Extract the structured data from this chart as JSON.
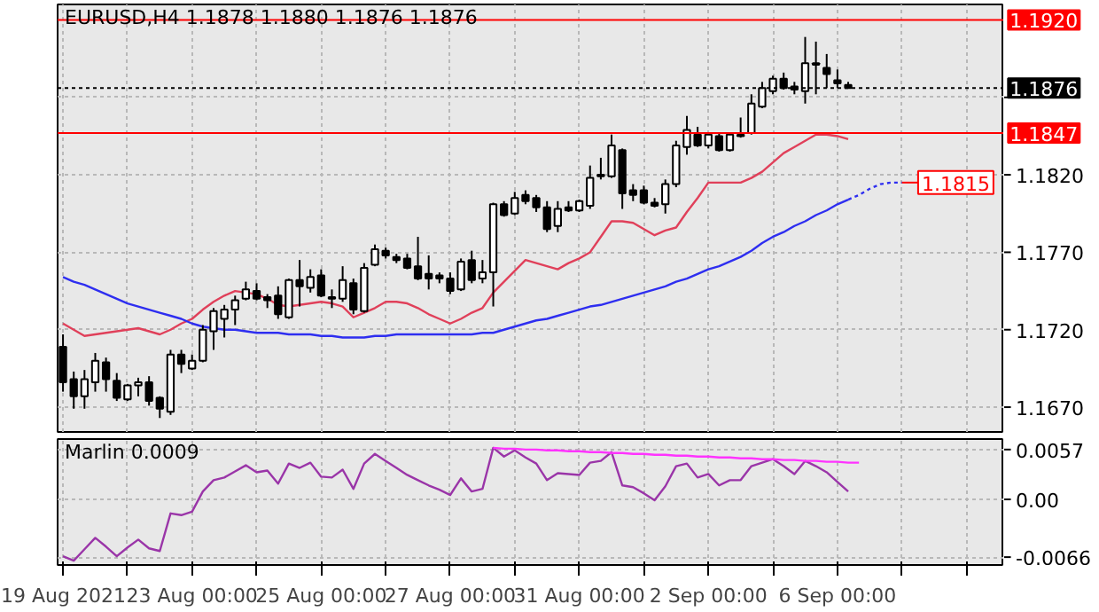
{
  "chart_data": [
    {
      "type": "candlestick",
      "title": "EURUSD,H4  1.1878 1.1880 1.1876 1.1876",
      "categories": [
        null,
        null,
        null,
        null,
        null,
        null,
        null,
        null,
        null,
        null,
        null,
        null,
        null,
        null,
        null,
        null,
        null,
        null,
        null,
        null,
        null,
        null,
        null,
        null,
        null,
        null,
        null,
        null,
        null,
        null,
        null,
        null,
        null,
        null,
        null,
        null,
        null,
        null,
        null,
        null,
        null,
        null,
        null,
        null,
        null,
        null,
        null,
        null,
        null,
        null,
        null,
        null,
        null,
        null,
        null,
        null,
        null,
        null,
        null,
        null,
        null,
        null,
        null,
        null,
        null,
        null,
        null,
        null,
        null,
        null,
        null,
        null,
        null,
        null,
        null,
        null,
        null,
        null,
        null,
        null,
        null,
        null,
        null,
        null,
        null,
        null,
        null,
        null
      ],
      "ohlc": [
        [
          1.1709,
          1.1717,
          1.168,
          1.1686
        ],
        [
          1.1688,
          1.1693,
          1.1669,
          1.1677
        ],
        [
          1.1677,
          1.1694,
          1.1669,
          1.1688
        ],
        [
          1.1686,
          1.1705,
          1.168,
          1.17
        ],
        [
          1.1699,
          1.1702,
          1.168,
          1.1688
        ],
        [
          1.1687,
          1.1692,
          1.1674,
          1.1676
        ],
        [
          1.1675,
          1.1685,
          1.1674,
          1.1684
        ],
        [
          1.1684,
          1.1689,
          1.1677,
          1.1686
        ],
        [
          1.1686,
          1.169,
          1.1671,
          1.1674
        ],
        [
          1.1676,
          1.1677,
          1.1663,
          1.1669
        ],
        [
          1.1667,
          1.1707,
          1.1665,
          1.1704
        ],
        [
          1.1704,
          1.1707,
          1.1692,
          1.1698
        ],
        [
          1.1695,
          1.1704,
          1.1694,
          1.17
        ],
        [
          1.17,
          1.1723,
          1.1699,
          1.172
        ],
        [
          1.1719,
          1.1734,
          1.1707,
          1.1732
        ],
        [
          1.1727,
          1.1736,
          1.1715,
          1.1733
        ],
        [
          1.1733,
          1.1742,
          1.1723,
          1.1739
        ],
        [
          1.174,
          1.1751,
          1.1739,
          1.1746
        ],
        [
          1.1745,
          1.175,
          1.1739,
          1.174
        ],
        [
          1.1741,
          1.1743,
          1.1734,
          1.1739
        ],
        [
          1.1742,
          1.1748,
          1.1727,
          1.173
        ],
        [
          1.1728,
          1.1753,
          1.1727,
          1.1752
        ],
        [
          1.1752,
          1.1765,
          1.1735,
          1.1748
        ],
        [
          1.1747,
          1.1759,
          1.1744,
          1.1754
        ],
        [
          1.1755,
          1.1759,
          1.1741,
          1.1742
        ],
        [
          1.1741,
          1.1746,
          1.1734,
          1.174
        ],
        [
          1.174,
          1.1761,
          1.1738,
          1.1752
        ],
        [
          1.175,
          1.1753,
          1.173,
          1.1733
        ],
        [
          1.1732,
          1.1763,
          1.1731,
          1.176
        ],
        [
          1.1762,
          1.1775,
          1.1761,
          1.1772
        ],
        [
          1.1771,
          1.1773,
          1.1766,
          1.1768
        ],
        [
          1.1767,
          1.1769,
          1.1763,
          1.1765
        ],
        [
          1.1766,
          1.1769,
          1.1759,
          1.176
        ],
        [
          1.1761,
          1.178,
          1.1752,
          1.1753
        ],
        [
          1.1756,
          1.1768,
          1.1746,
          1.1753
        ],
        [
          1.1755,
          1.1757,
          1.175,
          1.1753
        ],
        [
          1.1753,
          1.1757,
          1.1743,
          1.1745
        ],
        [
          1.1746,
          1.1766,
          1.1745,
          1.1764
        ],
        [
          1.1765,
          1.1771,
          1.175,
          1.1752
        ],
        [
          1.1753,
          1.1765,
          1.175,
          1.1757
        ],
        [
          1.1757,
          1.1802,
          1.1735,
          1.1801
        ],
        [
          1.1801,
          1.1803,
          1.1793,
          1.1794
        ],
        [
          1.1795,
          1.1809,
          1.1794,
          1.1805
        ],
        [
          1.1807,
          1.181,
          1.1801,
          1.1803
        ],
        [
          1.1805,
          1.1807,
          1.1796,
          1.1799
        ],
        [
          1.1799,
          1.1803,
          1.1783,
          1.1785
        ],
        [
          1.1787,
          1.1803,
          1.1783,
          1.1798
        ],
        [
          1.1799,
          1.1803,
          1.1796,
          1.1797
        ],
        [
          1.1797,
          1.1804,
          1.1796,
          1.1803
        ],
        [
          1.18,
          1.1826,
          1.1798,
          1.1818
        ],
        [
          1.182,
          1.1831,
          1.1817,
          1.1819
        ],
        [
          1.1819,
          1.1846,
          1.1818,
          1.1839
        ],
        [
          1.1836,
          1.1837,
          1.1798,
          1.1808
        ],
        [
          1.181,
          1.1814,
          1.1803,
          1.1807
        ],
        [
          1.181,
          1.1813,
          1.1801,
          1.1802
        ],
        [
          1.1802,
          1.1805,
          1.1799,
          1.18
        ],
        [
          1.1801,
          1.1817,
          1.1795,
          1.1814
        ],
        [
          1.1814,
          1.1842,
          1.1812,
          1.1839
        ],
        [
          1.1838,
          1.1858,
          1.1833,
          1.1849
        ],
        [
          1.1846,
          1.1851,
          1.1838,
          1.1839
        ],
        [
          1.1839,
          1.1847,
          1.1837,
          1.1846
        ],
        [
          1.1845,
          1.1847,
          1.1835,
          1.1836
        ],
        [
          1.1836,
          1.1847,
          1.1835,
          1.1846
        ],
        [
          1.1845,
          1.1857,
          1.1844,
          1.1846
        ],
        [
          1.1847,
          1.1872,
          1.1846,
          1.1866
        ],
        [
          1.1864,
          1.188,
          1.1863,
          1.1876
        ],
        [
          1.1874,
          1.1884,
          1.1872,
          1.1882
        ],
        [
          1.1882,
          1.1886,
          1.1875,
          1.1876
        ],
        [
          1.1877,
          1.188,
          1.1872,
          1.1875
        ],
        [
          1.1874,
          1.1909,
          1.1866,
          1.1892
        ],
        [
          1.1892,
          1.1906,
          1.1872,
          1.1891
        ],
        [
          1.1889,
          1.1898,
          1.1876,
          1.1885
        ],
        [
          1.1881,
          1.1888,
          1.1876,
          1.1879
        ],
        [
          1.1878,
          1.188,
          1.1876,
          1.1876
        ],
        null,
        null,
        null,
        null,
        null,
        null,
        null,
        null,
        null,
        null,
        null,
        null,
        null,
        null
      ],
      "series": [
        {
          "type": "line",
          "color": "#e0405a",
          "values": [
            1.1724,
            1.172,
            1.1716,
            1.1717,
            1.1718,
            1.1719,
            1.172,
            1.1721,
            1.1719,
            1.1717,
            1.172,
            1.1724,
            1.1727,
            1.1733,
            1.1738,
            1.1742,
            1.1745,
            1.1744,
            1.1743,
            1.174,
            1.1736,
            1.1735,
            1.1736,
            1.1737,
            1.1738,
            1.1737,
            1.1735,
            1.1728,
            1.1731,
            1.1734,
            1.1738,
            1.1738,
            1.1737,
            1.1734,
            1.173,
            1.1727,
            1.1724,
            1.1727,
            1.1731,
            1.1734,
            1.1744,
            1.1751,
            1.1758,
            1.1765,
            1.1763,
            1.1761,
            1.1759,
            1.1763,
            1.1766,
            1.177,
            1.178,
            1.179,
            1.179,
            1.1789,
            1.1785,
            1.1781,
            1.1784,
            1.1786,
            1.1796,
            1.1805,
            1.1815,
            1.1815,
            1.1815,
            1.1815,
            1.1818,
            1.1822,
            1.1828,
            1.1834,
            1.1838,
            1.1842,
            1.1846,
            1.1846,
            1.1845,
            1.1843,
            null,
            null,
            null,
            null,
            null,
            null,
            null,
            null,
            null,
            null,
            null,
            null,
            null,
            null
          ]
        },
        {
          "type": "line",
          "color": "#2e2ef0",
          "values": [
            1.1754,
            1.1751,
            1.1749,
            1.1746,
            1.1743,
            1.174,
            1.1737,
            1.1735,
            1.1733,
            1.1731,
            1.1729,
            1.1727,
            1.1724,
            1.1722,
            1.1721,
            1.172,
            1.172,
            1.1719,
            1.1718,
            1.1718,
            1.1718,
            1.1717,
            1.1717,
            1.1717,
            1.1716,
            1.1716,
            1.1715,
            1.1715,
            1.1715,
            1.1716,
            1.1716,
            1.1717,
            1.1717,
            1.1717,
            1.1717,
            1.1717,
            1.1717,
            1.1717,
            1.1717,
            1.1718,
            1.1718,
            1.172,
            1.1722,
            1.1724,
            1.1726,
            1.1727,
            1.1729,
            1.1731,
            1.1733,
            1.1735,
            1.1736,
            1.1738,
            1.174,
            1.1742,
            1.1744,
            1.1746,
            1.1748,
            1.1751,
            1.1753,
            1.1756,
            1.1759,
            1.1761,
            1.1764,
            1.1767,
            1.1771,
            1.1776,
            1.178,
            1.1783,
            1.1787,
            1.179,
            1.1794,
            1.1797,
            1.1801,
            1.1804,
            null,
            null,
            null,
            null,
            null,
            null,
            null,
            null,
            null,
            null,
            null,
            null,
            null,
            null
          ]
        },
        {
          "type": "line",
          "color": "#2e2ef0",
          "line_style": "dotted",
          "values": [
            null,
            null,
            null,
            null,
            null,
            null,
            null,
            null,
            null,
            null,
            null,
            null,
            null,
            null,
            null,
            null,
            null,
            null,
            null,
            null,
            null,
            null,
            null,
            null,
            null,
            null,
            null,
            null,
            null,
            null,
            null,
            null,
            null,
            null,
            null,
            null,
            null,
            null,
            null,
            null,
            null,
            null,
            null,
            null,
            null,
            null,
            null,
            null,
            null,
            null,
            null,
            null,
            null,
            null,
            null,
            null,
            null,
            null,
            null,
            null,
            null,
            null,
            null,
            null,
            null,
            null,
            null,
            null,
            null,
            null,
            null,
            null,
            null,
            1.1804,
            1.1807,
            1.1811,
            1.1814,
            1.1815,
            1.1815,
            null,
            null,
            null,
            null,
            null,
            null,
            null,
            null,
            null
          ]
        }
      ],
      "annotations": [
        {
          "text": "1.1815",
          "y": 1.1815
        }
      ],
      "ref_lines": [
        {
          "axis": "y",
          "value": 1.192,
          "label": "1.1920",
          "color": "#ff0000"
        },
        {
          "axis": "y",
          "value": 1.1847,
          "label": "1.1847",
          "color": "#ff0000"
        },
        {
          "axis": "y",
          "value": 1.1876,
          "label": "1.1876",
          "color": "#000000",
          "line_style": "dotted"
        }
      ],
      "ylim": [
        1.1654,
        1.193
      ],
      "yticks": [
        {
          "value": 1.167,
          "label": "1.1670"
        },
        {
          "value": 1.172,
          "label": "1.1720"
        },
        {
          "value": 1.177,
          "label": "1.1770"
        },
        {
          "value": 1.182,
          "label": "1.1820"
        },
        {
          "value": 1.187,
          "label": null
        }
      ],
      "tick_labels": "y",
      "grid": true
    },
    {
      "type": "line",
      "title": "Marlin 0.0009",
      "categories": [
        "19 Aug 2021",
        null,
        null,
        null,
        null,
        null,
        null,
        null,
        null,
        null,
        null,
        null,
        "23 Aug 00:00",
        null,
        null,
        null,
        null,
        null,
        null,
        null,
        null,
        null,
        null,
        null,
        "25 Aug 00:00",
        null,
        null,
        null,
        null,
        null,
        null,
        null,
        null,
        null,
        null,
        null,
        "27 Aug 00:00",
        null,
        null,
        null,
        null,
        null,
        null,
        null,
        null,
        null,
        null,
        null,
        "31 Aug 00:00",
        null,
        null,
        null,
        null,
        null,
        null,
        null,
        null,
        null,
        null,
        null,
        "2 Sep 00:00",
        null,
        null,
        null,
        null,
        null,
        null,
        null,
        null,
        null,
        null,
        null,
        "6 Sep 00:00",
        null,
        null,
        null,
        null,
        null,
        null,
        null,
        null,
        null,
        null,
        null,
        null,
        null,
        null,
        null
      ],
      "series": [
        {
          "color": "#9a35a8",
          "values": [
            -0.0065,
            -0.007,
            -0.0057,
            -0.0044,
            -0.0054,
            -0.0065,
            -0.0055,
            -0.0046,
            -0.0056,
            -0.0059,
            -0.0016,
            -0.0018,
            -0.0014,
            0.0009,
            0.0022,
            0.0025,
            0.0032,
            0.0039,
            0.0031,
            0.0033,
            0.0018,
            0.0041,
            0.0036,
            0.0042,
            0.0026,
            0.0025,
            0.0034,
            0.0012,
            0.0041,
            0.0052,
            0.0044,
            0.0036,
            0.0028,
            0.0022,
            0.0016,
            0.0011,
            0.0005,
            0.0024,
            0.0009,
            0.0012,
            0.0059,
            0.0049,
            0.0056,
            0.0048,
            0.0041,
            0.0022,
            0.003,
            0.0029,
            0.0028,
            0.0042,
            0.0044,
            0.0054,
            0.0016,
            0.0014,
            0.0007,
            -0.0001,
            0.0015,
            0.0038,
            0.0041,
            0.0025,
            0.0029,
            0.0016,
            0.0022,
            0.0022,
            0.0038,
            0.0042,
            0.0046,
            0.0038,
            0.0029,
            0.0044,
            0.0038,
            0.0031,
            0.002,
            0.0009,
            null,
            null,
            null,
            null,
            null,
            null,
            null,
            null,
            null,
            null,
            null,
            null,
            null,
            null
          ]
        },
        {
          "color": "#ff33ff",
          "values": [
            null,
            null,
            null,
            null,
            null,
            null,
            null,
            null,
            null,
            null,
            null,
            null,
            null,
            null,
            null,
            null,
            null,
            null,
            null,
            null,
            null,
            null,
            null,
            null,
            null,
            null,
            null,
            null,
            null,
            null,
            null,
            null,
            null,
            null,
            null,
            null,
            null,
            null,
            null,
            null,
            0.0059,
            0.0058,
            0.0058,
            0.0057,
            0.0057,
            0.0056,
            0.0056,
            0.0055,
            0.0055,
            0.0054,
            0.0054,
            0.0053,
            0.0053,
            0.0052,
            0.0052,
            0.0051,
            0.0051,
            0.005,
            0.005,
            0.0049,
            0.0049,
            0.0048,
            0.0048,
            0.0047,
            0.0047,
            0.0046,
            0.0046,
            0.0045,
            0.0045,
            0.0044,
            0.0044,
            0.0043,
            0.0043,
            0.0042,
            0.0042,
            null,
            null,
            null,
            null,
            null,
            null,
            null,
            null,
            null,
            null,
            null,
            null,
            null
          ]
        }
      ],
      "ylim": [
        -0.0075,
        0.0069
      ],
      "yticks": [
        {
          "value": 0.0057,
          "label": "0.0057"
        },
        {
          "value": 0,
          "label": "0.00"
        },
        {
          "value": -0.0066,
          "label": "-0.0066"
        }
      ],
      "grid": true
    }
  ]
}
